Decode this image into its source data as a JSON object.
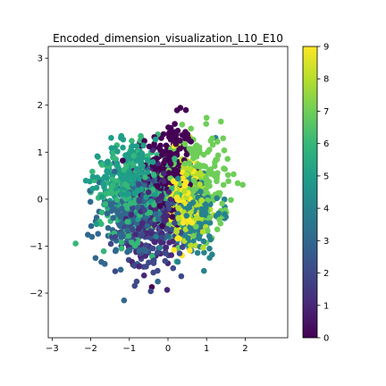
{
  "chart_data": {
    "type": "scatter",
    "title": "Encoded_dimension_visualization_L10_E10",
    "xlabel": "",
    "ylabel": "",
    "xlim": [
      -3.1,
      3.1
    ],
    "ylim": [
      -2.95,
      3.25
    ],
    "x_ticks": [
      -3,
      -2,
      -1,
      0,
      1,
      2
    ],
    "y_ticks": [
      -2,
      -1,
      0,
      1,
      2,
      3
    ],
    "grid": false,
    "colormap": "viridis",
    "colorbar": {
      "min": 0,
      "max": 9,
      "ticks": [
        0,
        1,
        2,
        3,
        4,
        5,
        6,
        7,
        8,
        9
      ]
    },
    "clusters": [
      {
        "label": 0,
        "center": [
          0.05,
          0.55
        ],
        "spread": [
          0.55,
          1.05
        ],
        "count": 260
      },
      {
        "label": 1,
        "center": [
          -0.35,
          -0.35
        ],
        "spread": [
          0.65,
          1.0
        ],
        "count": 160
      },
      {
        "label": 2,
        "center": [
          -0.45,
          -0.6
        ],
        "spread": [
          0.8,
          0.9
        ],
        "count": 180
      },
      {
        "label": 3,
        "center": [
          -0.9,
          -0.35
        ],
        "spread": [
          0.85,
          0.85
        ],
        "count": 200
      },
      {
        "label": 4,
        "center": [
          0.55,
          -0.3
        ],
        "spread": [
          0.75,
          0.85
        ],
        "count": 200
      },
      {
        "label": 5,
        "center": [
          -0.95,
          0.45
        ],
        "spread": [
          0.8,
          0.75
        ],
        "count": 220
      },
      {
        "label": 6,
        "center": [
          -0.8,
          0.1
        ],
        "spread": [
          0.9,
          0.9
        ],
        "count": 260
      },
      {
        "label": 7,
        "center": [
          0.75,
          0.35
        ],
        "spread": [
          0.75,
          0.95
        ],
        "count": 220
      },
      {
        "label": 8,
        "center": [
          0.55,
          0.05
        ],
        "spread": [
          0.45,
          0.8
        ],
        "count": 160
      },
      {
        "label": 9,
        "center": [
          0.35,
          0.0
        ],
        "spread": [
          0.3,
          0.75
        ],
        "count": 170
      }
    ]
  }
}
